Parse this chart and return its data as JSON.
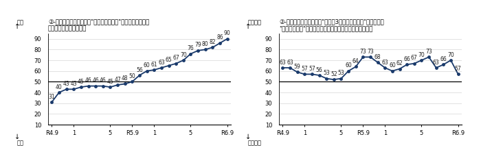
{
  "left": {
    "title_line1": "②-ア　国内の主食用米の\"現在の米価水準\"について、どう考",
    "title_line2": "えていますか。（全体）",
    "ylabel_top": "高い",
    "ylabel_bottom": "低い",
    "values": [
      31,
      40,
      43,
      43,
      45,
      46,
      46,
      46,
      45,
      47,
      48,
      50,
      56,
      60,
      61,
      63,
      65,
      67,
      70,
      76,
      79,
      80,
      82,
      86,
      90
    ],
    "xlabels": [
      "R4.9",
      "1",
      "5",
      "R5.9",
      "1",
      "5",
      "R6.9"
    ],
    "xlabels_pos": [
      0,
      3,
      8,
      11,
      14,
      19,
      24
    ],
    "ylim": [
      10,
      95
    ],
    "yticks": [
      10,
      20,
      30,
      40,
      50,
      60,
      70,
      80,
      90
    ],
    "hline": 50
  },
  "right": {
    "title_line1": "②-イ　国内の主食用米の\"向こう3ヶ月の米価水準\"について、",
    "title_line2": "\"現時点と比較\"してどうなると考えていますか。（全体）",
    "ylabel_top": "高くなる",
    "ylabel_bottom": "低くなる",
    "values": [
      63,
      63,
      59,
      57,
      57,
      56,
      53,
      52,
      53,
      60,
      64,
      73,
      73,
      68,
      63,
      60,
      62,
      66,
      67,
      70,
      73,
      63,
      66,
      70,
      57
    ],
    "xlabels": [
      "R4.9",
      "1",
      "5",
      "R5.9",
      "1",
      "5",
      "R6.9"
    ],
    "xlabels_pos": [
      0,
      3,
      8,
      11,
      14,
      19,
      24
    ],
    "ylim": [
      10,
      95
    ],
    "yticks": [
      10,
      20,
      30,
      40,
      50,
      60,
      70,
      80,
      90
    ],
    "hline": 50
  },
  "line_color": "#1a3a6b",
  "hline_color": "#000000",
  "grid_color": "#cccccc",
  "label_fontsize": 5.5,
  "title_fontsize": 6.2,
  "tick_fontsize": 6.0,
  "ylabel_fontsize": 6.0
}
